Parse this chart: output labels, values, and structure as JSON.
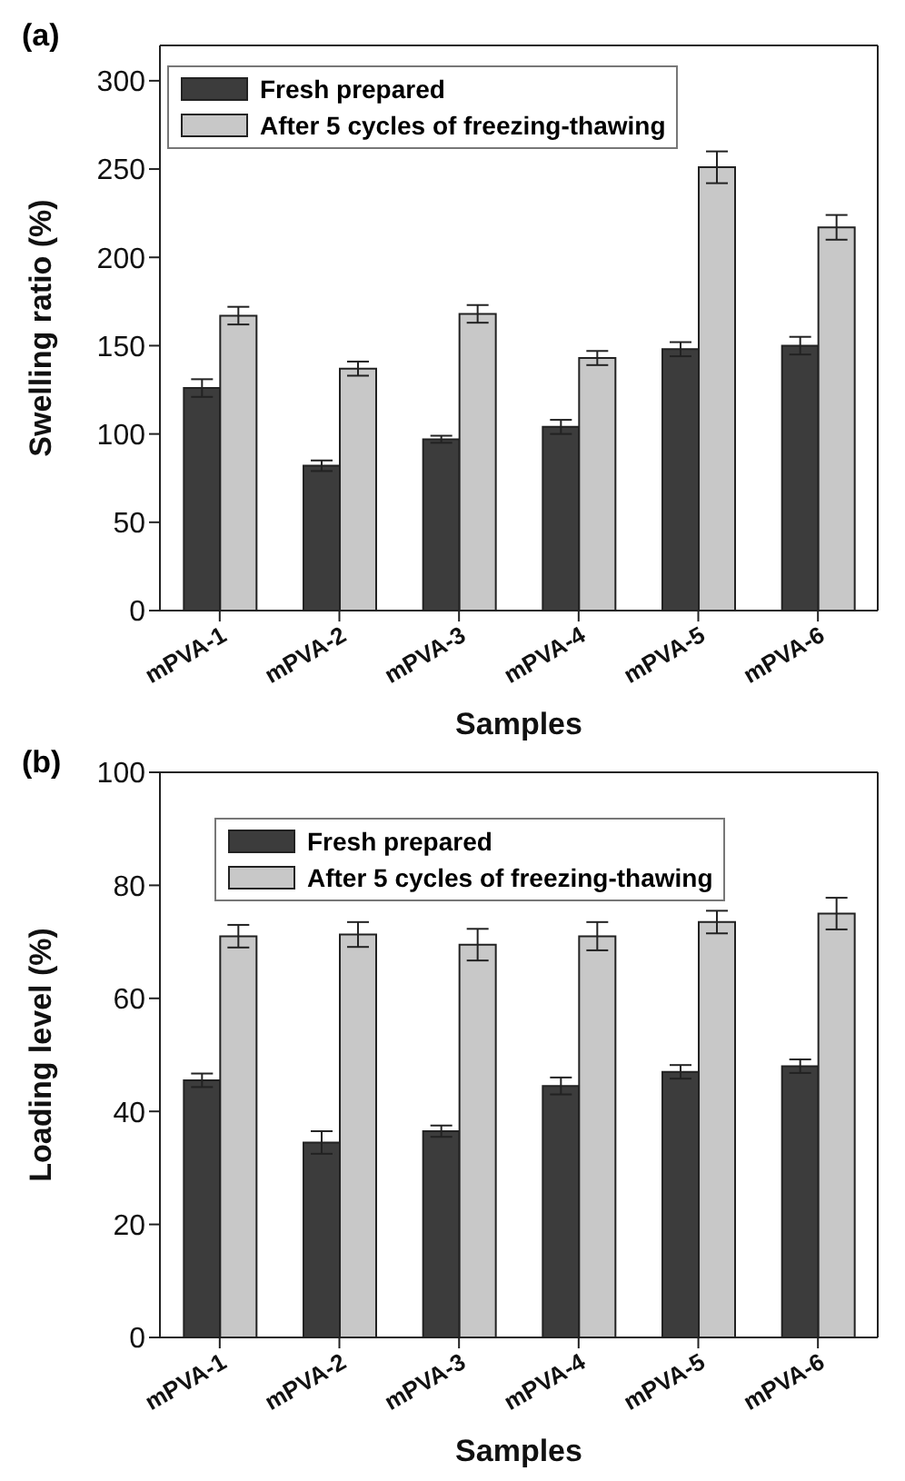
{
  "chart_data": [
    {
      "type": "bar",
      "title": "(a)",
      "xlabel": "Samples",
      "ylabel": "Swelling ratio (%)",
      "categories": [
        "mPVA-1",
        "mPVA-2",
        "mPVA-3",
        "mPVA-4",
        "mPVA-5",
        "mPVA-6"
      ],
      "series": [
        {
          "name": "Fresh prepared",
          "color": "#3c3c3c",
          "values": [
            126,
            82,
            97,
            104,
            148,
            150
          ],
          "errors": [
            5,
            3,
            2,
            4,
            4,
            5
          ]
        },
        {
          "name": "After 5 cycles of freezing-thawing",
          "color": "#c8c8c8",
          "values": [
            167,
            137,
            168,
            143,
            251,
            217
          ],
          "errors": [
            5,
            4,
            5,
            4,
            9,
            7
          ]
        }
      ],
      "ylim": [
        0,
        320
      ],
      "yticks": [
        0,
        50,
        100,
        150,
        200,
        250,
        300
      ],
      "grid": false,
      "legend": "top left"
    },
    {
      "type": "bar",
      "title": "(b)",
      "xlabel": "Samples",
      "ylabel": "Loading level (%)",
      "categories": [
        "mPVA-1",
        "mPVA-2",
        "mPVA-3",
        "mPVA-4",
        "mPVA-5",
        "mPVA-6"
      ],
      "series": [
        {
          "name": "Fresh prepared",
          "color": "#3c3c3c",
          "values": [
            45.5,
            34.5,
            36.5,
            44.5,
            47,
            48
          ],
          "errors": [
            1.2,
            2,
            1,
            1.5,
            1.2,
            1.2
          ]
        },
        {
          "name": "After 5 cycles of freezing-thawing",
          "color": "#c8c8c8",
          "values": [
            71,
            71.3,
            69.5,
            71,
            73.5,
            75
          ],
          "errors": [
            2,
            2.2,
            2.8,
            2.5,
            2,
            2.8
          ]
        }
      ],
      "ylim": [
        0,
        100
      ],
      "yticks": [
        0,
        20,
        40,
        60,
        80,
        100
      ],
      "grid": false,
      "legend": "top"
    }
  ]
}
